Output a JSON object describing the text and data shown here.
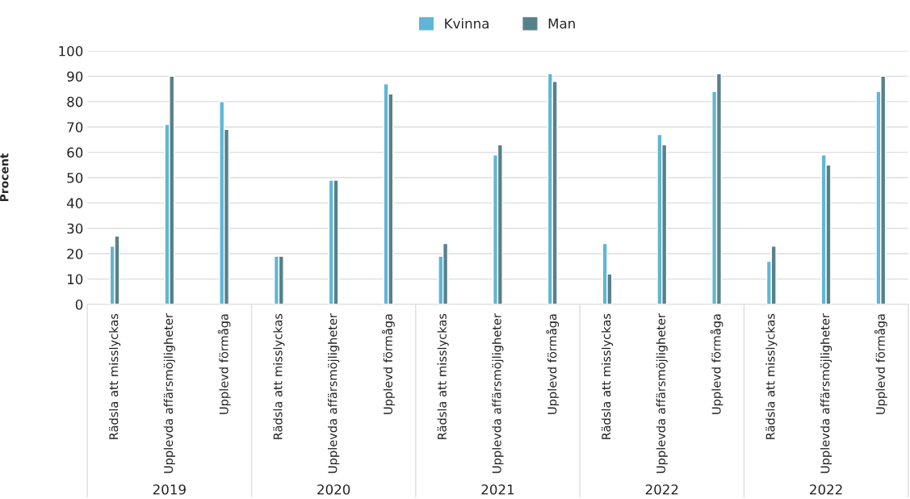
{
  "chart_data": {
    "type": "bar",
    "ylabel": "Procent",
    "categories": [
      "Rädsla att misslyckas",
      "Upplevda affärsmöjligheter",
      "Upplevd förmåga",
      "Rädsla att misslyckas",
      "Upplevda affärsmöjligheter",
      "Upplevd förmåga",
      "Rädsla att misslyckas",
      "Upplevda affärsmöjligheter",
      "Upplevd förmåga",
      "Rädsla att misslyckas",
      "Upplevda affärsmöjligheter",
      "Upplevd förmåga",
      "Rädsla att misslyckas",
      "Upplevda affärsmöjligheter",
      "Upplevd förmåga"
    ],
    "series": [
      {
        "name": "Kvinna",
        "color": "#5fb6d6",
        "values": [
          23,
          71,
          80,
          19,
          49,
          87,
          19,
          59,
          91,
          24,
          67,
          84,
          17,
          59,
          84
        ]
      },
      {
        "name": "Man",
        "color": "#57818a",
        "values": [
          27,
          90,
          69,
          19,
          49,
          83,
          24,
          63,
          88,
          12,
          63,
          91,
          23,
          55,
          90
        ]
      }
    ],
    "annotations": [
      "2019",
      "2020",
      "2021",
      "2022",
      "2022"
    ],
    "ylim": [
      0,
      100
    ],
    "yticks": [
      0,
      10,
      20,
      30,
      40,
      50,
      60,
      70,
      80,
      90,
      100
    ],
    "grid": "y",
    "legend": "top"
  }
}
